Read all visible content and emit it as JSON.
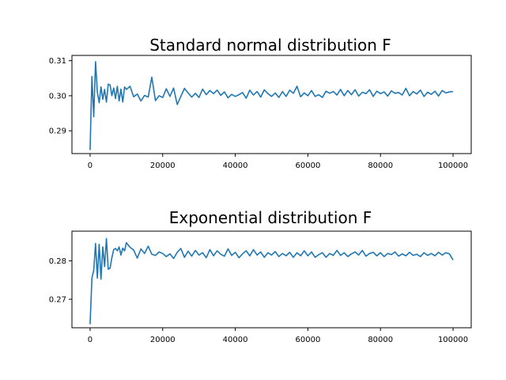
{
  "chart_data": [
    {
      "type": "line",
      "title": "Standard normal distribution F",
      "xlabel": "",
      "ylabel": "",
      "xlim": [
        -5000,
        105000
      ],
      "ylim": [
        0.2835,
        0.3115
      ],
      "xticks": [
        0,
        20000,
        40000,
        60000,
        80000,
        100000
      ],
      "yticks": [
        0.29,
        0.3,
        0.31
      ],
      "ytick_labels": [
        "0.29",
        "0.30",
        "0.31"
      ],
      "grid": false,
      "color": "#1f77b4",
      "series": [
        {
          "x": [
            0,
            500,
            1000,
            1500,
            2000,
            2500,
            3000,
            3500,
            4000,
            4500,
            5000,
            5500,
            6000,
            6500,
            7000,
            7500,
            8000,
            8500,
            9000,
            9500,
            10000,
            11000,
            12000,
            13000,
            14000,
            15000,
            16000,
            17000,
            18000,
            19000,
            20000,
            21000,
            22000,
            23000,
            24000,
            25000,
            26000,
            27000,
            28000,
            29000,
            30000,
            31000,
            32000,
            33000,
            34000,
            35000,
            36000,
            37000,
            38000,
            39000,
            40000,
            41000,
            42000,
            43000,
            44000,
            45000,
            46000,
            47000,
            48000,
            49000,
            50000,
            51000,
            52000,
            53000,
            54000,
            55000,
            56000,
            57000,
            58000,
            59000,
            60000,
            61000,
            62000,
            63000,
            64000,
            65000,
            66000,
            67000,
            68000,
            69000,
            70000,
            71000,
            72000,
            73000,
            74000,
            75000,
            76000,
            77000,
            78000,
            79000,
            80000,
            81000,
            82000,
            83000,
            84000,
            85000,
            86000,
            87000,
            88000,
            89000,
            90000,
            91000,
            92000,
            93000,
            94000,
            95000,
            96000,
            97000,
            98000,
            99000,
            100000
          ],
          "y": [
            0.2845,
            0.3055,
            0.294,
            0.3097,
            0.301,
            0.298,
            0.3025,
            0.299,
            0.3018,
            0.2982,
            0.3033,
            0.3031,
            0.3,
            0.3022,
            0.2992,
            0.3027,
            0.2985,
            0.3019,
            0.2982,
            0.3025,
            0.3018,
            0.3027,
            0.2997,
            0.3005,
            0.2985,
            0.3001,
            0.2996,
            0.3053,
            0.2986,
            0.3,
            0.2995,
            0.302,
            0.2998,
            0.3022,
            0.2975,
            0.2998,
            0.3021,
            0.3008,
            0.2996,
            0.3007,
            0.2995,
            0.3019,
            0.3003,
            0.3015,
            0.3006,
            0.3016,
            0.3001,
            0.3011,
            0.2994,
            0.3004,
            0.2998,
            0.3003,
            0.3009,
            0.2993,
            0.3016,
            0.3002,
            0.3012,
            0.2996,
            0.3017,
            0.3006,
            0.2998,
            0.3008,
            0.2995,
            0.3012,
            0.2998,
            0.3016,
            0.3007,
            0.3027,
            0.2997,
            0.3008,
            0.3,
            0.3015,
            0.2998,
            0.3003,
            0.2995,
            0.3013,
            0.3007,
            0.3012,
            0.3002,
            0.3018,
            0.3,
            0.3015,
            0.3003,
            0.3017,
            0.2999,
            0.301,
            0.3006,
            0.3017,
            0.2998,
            0.3013,
            0.3006,
            0.3011,
            0.2999,
            0.3014,
            0.3007,
            0.3009,
            0.3002,
            0.3021,
            0.3,
            0.3012,
            0.3005,
            0.3016,
            0.2998,
            0.301,
            0.3004,
            0.3013,
            0.2999,
            0.3015,
            0.3008,
            0.3011,
            0.3012
          ]
        }
      ]
    },
    {
      "type": "line",
      "title": "Exponential distribution F",
      "xlabel": "",
      "ylabel": "",
      "xlim": [
        -5000,
        105000
      ],
      "ylim": [
        0.2626,
        0.2877
      ],
      "xticks": [
        0,
        20000,
        40000,
        60000,
        80000,
        100000
      ],
      "xtick_labels": [
        "0",
        "20000",
        "40000",
        "60000",
        "80000",
        "100000"
      ],
      "yticks": [
        0.27,
        0.28
      ],
      "ytick_labels": [
        "0.27",
        "0.28"
      ],
      "grid": false,
      "color": "#1f77b4",
      "series": [
        {
          "x": [
            0,
            500,
            1000,
            1500,
            2000,
            2500,
            3000,
            3500,
            4000,
            4500,
            5000,
            5500,
            6000,
            6500,
            7000,
            7500,
            8000,
            8500,
            9000,
            9500,
            10000,
            11000,
            12000,
            13000,
            14000,
            15000,
            16000,
            17000,
            18000,
            19000,
            20000,
            21000,
            22000,
            23000,
            24000,
            25000,
            26000,
            27000,
            28000,
            29000,
            30000,
            31000,
            32000,
            33000,
            34000,
            35000,
            36000,
            37000,
            38000,
            39000,
            40000,
            41000,
            42000,
            43000,
            44000,
            45000,
            46000,
            47000,
            48000,
            49000,
            50000,
            51000,
            52000,
            53000,
            54000,
            55000,
            56000,
            57000,
            58000,
            59000,
            60000,
            61000,
            62000,
            63000,
            64000,
            65000,
            66000,
            67000,
            68000,
            69000,
            70000,
            71000,
            72000,
            73000,
            74000,
            75000,
            76000,
            77000,
            78000,
            79000,
            80000,
            81000,
            82000,
            83000,
            84000,
            85000,
            86000,
            87000,
            88000,
            89000,
            90000,
            91000,
            92000,
            93000,
            94000,
            95000,
            96000,
            97000,
            98000,
            99000,
            100000
          ],
          "y": [
            0.2635,
            0.2755,
            0.2775,
            0.2845,
            0.2755,
            0.2843,
            0.2752,
            0.2836,
            0.2785,
            0.2858,
            0.2778,
            0.2781,
            0.2808,
            0.2829,
            0.2832,
            0.2826,
            0.2836,
            0.2815,
            0.2833,
            0.2826,
            0.2847,
            0.2835,
            0.2828,
            0.2807,
            0.2831,
            0.2819,
            0.2838,
            0.2817,
            0.2814,
            0.2823,
            0.2819,
            0.2811,
            0.2818,
            0.2806,
            0.2822,
            0.2832,
            0.2809,
            0.2825,
            0.2812,
            0.2827,
            0.2815,
            0.2821,
            0.2808,
            0.2829,
            0.2813,
            0.2826,
            0.2817,
            0.2812,
            0.2831,
            0.2814,
            0.2822,
            0.2808,
            0.2818,
            0.2826,
            0.2813,
            0.2829,
            0.2815,
            0.2823,
            0.2809,
            0.2821,
            0.2815,
            0.2824,
            0.2811,
            0.2819,
            0.2813,
            0.2822,
            0.2809,
            0.2821,
            0.2813,
            0.2826,
            0.2813,
            0.2823,
            0.2809,
            0.2816,
            0.2821,
            0.2809,
            0.2819,
            0.2814,
            0.2827,
            0.2814,
            0.2821,
            0.2811,
            0.2818,
            0.2823,
            0.2815,
            0.2827,
            0.2812,
            0.2819,
            0.2822,
            0.2813,
            0.2821,
            0.2811,
            0.2819,
            0.2816,
            0.2823,
            0.2812,
            0.2818,
            0.2813,
            0.2822,
            0.2814,
            0.2817,
            0.2811,
            0.2821,
            0.2814,
            0.2819,
            0.2813,
            0.2822,
            0.2815,
            0.2821,
            0.2818,
            0.2802
          ]
        }
      ]
    }
  ]
}
